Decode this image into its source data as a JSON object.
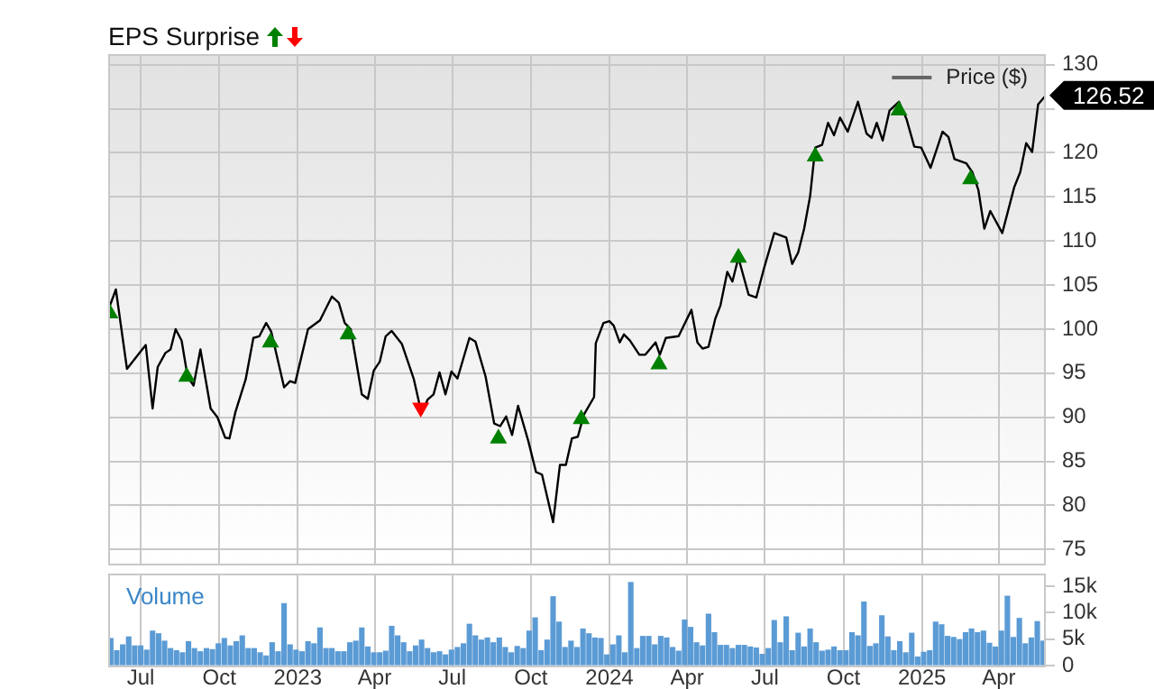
{
  "chart_data": [
    {
      "type": "line",
      "title": "EPS Surprise",
      "legend": "top right",
      "grid": true,
      "tick_labels": "y",
      "xlim": [
        "2022-05-24",
        "2025-05-26"
      ],
      "xticks": [
        {
          "value": "2022-07-01",
          "label": null
        },
        {
          "value": "2022-10-01",
          "label": null
        },
        {
          "value": "2023-01-01",
          "label": null
        },
        {
          "value": "2023-04-01",
          "label": null
        },
        {
          "value": "2023-07-01",
          "label": null
        },
        {
          "value": "2023-10-01",
          "label": null
        },
        {
          "value": "2024-01-01",
          "label": null
        },
        {
          "value": "2024-04-01",
          "label": null
        },
        {
          "value": "2024-07-01",
          "label": null
        },
        {
          "value": "2024-10-01",
          "label": null
        },
        {
          "value": "2025-01-01",
          "label": null
        },
        {
          "value": "2025-04-01",
          "label": null
        }
      ],
      "ylim": [
        73.4,
        131.2
      ],
      "yticks": [
        75,
        80,
        85,
        90,
        95,
        100,
        105,
        110,
        115,
        120,
        {
          "value": 125,
          "label": null
        },
        130
      ],
      "annotations": [
        {
          "text": "126.52",
          "x": "2025-05-26",
          "y": 126.52
        }
      ],
      "series": [
        {
          "name": "Price ($)",
          "color": "#000000",
          "marker": "none",
          "x": [
            "2022-05-25",
            "2022-06-02",
            "2022-06-15",
            "2022-07-07",
            "2022-07-15",
            "2022-07-21",
            "2022-07-30",
            "2022-08-05",
            "2022-08-11",
            "2022-08-18",
            "2022-08-25",
            "2022-09-01",
            "2022-09-09",
            "2022-09-21",
            "2022-09-29",
            "2022-10-08",
            "2022-10-13",
            "2022-10-20",
            "2022-11-01",
            "2022-11-10",
            "2022-11-17",
            "2022-11-25",
            "2022-12-01",
            "2022-12-16",
            "2022-12-23",
            "2022-12-29",
            "2023-01-13",
            "2023-01-27",
            "2023-02-10",
            "2023-02-18",
            "2023-02-25",
            "2023-03-04",
            "2023-03-17",
            "2023-03-24",
            "2023-03-31",
            "2023-04-07",
            "2023-04-14",
            "2023-04-21",
            "2023-05-03",
            "2023-05-17",
            "2023-05-26",
            "2023-06-02",
            "2023-06-09",
            "2023-06-16",
            "2023-06-23",
            "2023-06-30",
            "2023-07-07",
            "2023-07-21",
            "2023-07-28",
            "2023-08-09",
            "2023-08-19",
            "2023-08-26",
            "2023-09-02",
            "2023-09-09",
            "2023-09-16",
            "2023-09-28",
            "2023-10-07",
            "2023-10-14",
            "2023-10-27",
            "2023-11-04",
            "2023-11-11",
            "2023-11-18",
            "2023-11-25",
            "2023-12-02",
            "2023-12-14",
            "2023-12-16",
            "2023-12-25",
            "2024-01-01",
            "2024-01-06",
            "2024-01-13",
            "2024-01-18",
            "2024-01-25",
            "2024-02-05",
            "2024-02-12",
            "2024-02-24",
            "2024-02-29",
            "2024-03-07",
            "2024-03-22",
            "2024-04-06",
            "2024-04-13",
            "2024-04-19",
            "2024-04-26",
            "2024-05-04",
            "2024-05-10",
            "2024-05-18",
            "2024-05-24",
            "2024-05-31",
            "2024-06-12",
            "2024-06-21",
            "2024-06-30",
            "2024-07-12",
            "2024-07-26",
            "2024-08-02",
            "2024-08-09",
            "2024-08-16",
            "2024-08-23",
            "2024-08-29",
            "2024-09-06",
            "2024-09-13",
            "2024-09-20",
            "2024-09-27",
            "2024-10-06",
            "2024-10-18",
            "2024-10-28",
            "2024-11-03",
            "2024-11-09",
            "2024-11-16",
            "2024-11-24",
            "2024-12-05",
            "2024-12-14",
            "2024-12-23",
            "2024-12-31",
            "2025-01-11",
            "2025-01-25",
            "2025-02-01",
            "2025-02-08",
            "2025-02-22",
            "2025-03-01",
            "2025-03-08",
            "2025-03-15",
            "2025-03-22",
            "2025-04-05",
            "2025-04-19",
            "2025-04-26",
            "2025-05-03",
            "2025-05-10",
            "2025-05-17",
            "2025-05-26"
          ],
          "values": [
            102.4,
            104.5,
            95.5,
            98.2,
            91.0,
            95.7,
            97.3,
            97.7,
            100.0,
            98.7,
            94.6,
            93.6,
            97.7,
            91.0,
            90.0,
            87.7,
            87.6,
            90.6,
            94.3,
            99.0,
            99.2,
            100.7,
            99.7,
            93.4,
            94.1,
            93.9,
            100.0,
            101.0,
            103.7,
            103.0,
            100.7,
            100.0,
            92.6,
            92.1,
            95.3,
            96.3,
            99.2,
            99.8,
            98.3,
            94.3,
            90.4,
            92.0,
            92.6,
            95.1,
            92.6,
            95.2,
            94.4,
            99.0,
            98.6,
            94.6,
            89.3,
            89.0,
            90.1,
            88.0,
            91.3,
            87.3,
            83.8,
            83.5,
            78.1,
            84.6,
            84.6,
            87.6,
            87.8,
            90.3,
            92.3,
            98.4,
            100.7,
            100.9,
            100.4,
            98.5,
            99.4,
            98.7,
            97.1,
            97.1,
            98.5,
            97.1,
            99.0,
            99.2,
            102.2,
            98.5,
            97.8,
            98.0,
            101.2,
            102.7,
            106.5,
            105.4,
            108.1,
            103.9,
            103.6,
            106.9,
            110.9,
            110.4,
            107.4,
            108.7,
            111.4,
            115.1,
            120.6,
            120.9,
            123.4,
            122.0,
            124.0,
            122.4,
            125.8,
            122.2,
            121.7,
            123.4,
            121.4,
            124.8,
            125.8,
            123.8,
            120.7,
            120.6,
            118.3,
            122.4,
            121.8,
            119.3,
            118.8,
            117.8,
            115.8,
            111.4,
            113.4,
            110.9,
            116.1,
            117.8,
            121.1,
            120.1,
            125.5,
            126.52
          ]
        },
        {
          "type": "scatter",
          "color": "#008000",
          "marker": "triangle",
          "x": [
            "2022-05-26",
            "2022-08-24",
            "2022-11-30",
            "2023-03-01",
            "2023-08-24",
            "2023-11-29",
            "2024-02-28",
            "2024-05-31",
            "2024-08-29",
            "2024-12-05",
            "2025-02-27"
          ],
          "values": [
            101.8,
            94.6,
            98.5,
            99.4,
            87.6,
            89.8,
            96.0,
            108.1,
            119.6,
            124.8,
            117.0
          ]
        },
        {
          "type": "scatter",
          "color": "#ff0000",
          "marker": "triangle",
          "x": [
            "2023-05-25"
          ],
          "values": [
            91.1
          ]
        }
      ]
    },
    {
      "type": "bar",
      "title": "Volume",
      "grid": "x",
      "color": "#5b9bd5",
      "xlim": [
        "2022-05-24",
        "2025-05-26"
      ],
      "xticks": [
        {
          "value": "2022-07-01",
          "label": "Jul"
        },
        {
          "value": "2022-10-01",
          "label": "Oct"
        },
        {
          "value": "2023-01-01",
          "label": "2023"
        },
        {
          "value": "2023-04-01",
          "label": "Apr"
        },
        {
          "value": "2023-07-01",
          "label": "Jul"
        },
        {
          "value": "2023-10-01",
          "label": "Oct"
        },
        {
          "value": "2024-01-01",
          "label": "2024"
        },
        {
          "value": "2024-04-01",
          "label": "Apr"
        },
        {
          "value": "2024-07-01",
          "label": "Jul"
        },
        {
          "value": "2024-10-01",
          "label": "Oct"
        },
        {
          "value": "2025-01-01",
          "label": "2025"
        },
        {
          "value": "2025-04-01",
          "label": "Apr"
        }
      ],
      "ylim": [
        0,
        17400
      ],
      "yticks": [
        0,
        {
          "value": 5000,
          "label": "5k"
        },
        {
          "value": 10000,
          "label": "10k"
        },
        {
          "value": 15000,
          "label": "15k"
        }
      ],
      "x": [
        "2022-05-27",
        "2022-06-03",
        "2022-06-10",
        "2022-06-17",
        "2022-06-24",
        "2022-07-01",
        "2022-07-08",
        "2022-07-15",
        "2022-07-22",
        "2022-07-29",
        "2022-08-05",
        "2022-08-12",
        "2022-08-19",
        "2022-08-26",
        "2022-09-02",
        "2022-09-09",
        "2022-09-16",
        "2022-09-23",
        "2022-09-30",
        "2022-10-07",
        "2022-10-14",
        "2022-10-21",
        "2022-10-28",
        "2022-11-04",
        "2022-11-11",
        "2022-11-18",
        "2022-11-25",
        "2022-12-02",
        "2022-12-09",
        "2022-12-16",
        "2022-12-23",
        "2022-12-30",
        "2023-01-06",
        "2023-01-13",
        "2023-01-20",
        "2023-01-27",
        "2023-02-03",
        "2023-02-10",
        "2023-02-17",
        "2023-02-24",
        "2023-03-03",
        "2023-03-10",
        "2023-03-17",
        "2023-03-24",
        "2023-03-31",
        "2023-04-07",
        "2023-04-14",
        "2023-04-21",
        "2023-04-28",
        "2023-05-05",
        "2023-05-12",
        "2023-05-19",
        "2023-05-26",
        "2023-06-02",
        "2023-06-09",
        "2023-06-16",
        "2023-06-23",
        "2023-06-30",
        "2023-07-07",
        "2023-07-14",
        "2023-07-21",
        "2023-07-28",
        "2023-08-04",
        "2023-08-11",
        "2023-08-18",
        "2023-08-25",
        "2023-09-01",
        "2023-09-08",
        "2023-09-15",
        "2023-09-22",
        "2023-09-29",
        "2023-10-06",
        "2023-10-13",
        "2023-10-20",
        "2023-10-27",
        "2023-11-03",
        "2023-11-10",
        "2023-11-17",
        "2023-11-24",
        "2023-12-01",
        "2023-12-08",
        "2023-12-15",
        "2023-12-22",
        "2023-12-29",
        "2024-01-05",
        "2024-01-12",
        "2024-01-19",
        "2024-01-26",
        "2024-02-02",
        "2024-02-09",
        "2024-02-16",
        "2024-02-23",
        "2024-03-01",
        "2024-03-08",
        "2024-03-15",
        "2024-03-22",
        "2024-03-29",
        "2024-04-05",
        "2024-04-12",
        "2024-04-19",
        "2024-04-26",
        "2024-05-03",
        "2024-05-10",
        "2024-05-17",
        "2024-05-24",
        "2024-05-31",
        "2024-06-07",
        "2024-06-14",
        "2024-06-21",
        "2024-06-28",
        "2024-07-05",
        "2024-07-12",
        "2024-07-19",
        "2024-07-26",
        "2024-08-02",
        "2024-08-09",
        "2024-08-16",
        "2024-08-23",
        "2024-08-30",
        "2024-09-06",
        "2024-09-13",
        "2024-09-20",
        "2024-09-27",
        "2024-10-04",
        "2024-10-11",
        "2024-10-18",
        "2024-10-25",
        "2024-11-01",
        "2024-11-08",
        "2024-11-15",
        "2024-11-22",
        "2024-11-29",
        "2024-12-06",
        "2024-12-13",
        "2024-12-20",
        "2024-12-27",
        "2025-01-03",
        "2025-01-10",
        "2025-01-17",
        "2025-01-24",
        "2025-01-31",
        "2025-02-07",
        "2025-02-14",
        "2025-02-21",
        "2025-02-28",
        "2025-03-07",
        "2025-03-14",
        "2025-03-21",
        "2025-03-28",
        "2025-04-04",
        "2025-04-11",
        "2025-04-18",
        "2025-04-25",
        "2025-05-02",
        "2025-05-09",
        "2025-05-16",
        "2025-05-23"
      ],
      "values": [
        5100,
        2800,
        3900,
        5400,
        3700,
        3700,
        2900,
        6500,
        6000,
        4600,
        3200,
        2800,
        2400,
        4500,
        3200,
        2600,
        3200,
        3000,
        4100,
        5100,
        3700,
        4500,
        5600,
        3200,
        3200,
        2400,
        1800,
        4300,
        2600,
        11700,
        3900,
        2900,
        2600,
        4500,
        4100,
        7100,
        3200,
        3200,
        2600,
        2600,
        4300,
        4600,
        7100,
        3500,
        2400,
        2400,
        2700,
        7400,
        5600,
        4300,
        2600,
        3700,
        4800,
        3200,
        2400,
        2600,
        2000,
        2900,
        3400,
        4100,
        7800,
        5600,
        4800,
        5200,
        4300,
        5200,
        3400,
        2400,
        3600,
        3200,
        6500,
        9000,
        2800,
        4800,
        13000,
        8200,
        3400,
        4600,
        3400,
        6900,
        6000,
        5200,
        5100,
        2000,
        3900,
        5600,
        2400,
        15700,
        3200,
        5500,
        5500,
        3900,
        5500,
        5200,
        3400,
        2700,
        8600,
        7200,
        4300,
        3700,
        9700,
        6200,
        3800,
        3800,
        3200,
        3800,
        3800,
        3500,
        3300,
        2100,
        3200,
        8500,
        4300,
        9200,
        2800,
        6100,
        3500,
        6900,
        4300,
        2700,
        2900,
        3500,
        2800,
        2800,
        6200,
        5600,
        12000,
        3600,
        4100,
        9400,
        5400,
        2800,
        4500,
        2400,
        6100,
        1600,
        2500,
        2800,
        8200,
        7700,
        5500,
        5300,
        4900,
        6200,
        6900,
        6200,
        6500,
        4200,
        3500,
        6500,
        13100,
        5300,
        8900,
        4100,
        5200,
        8300,
        4600
      ]
    }
  ]
}
